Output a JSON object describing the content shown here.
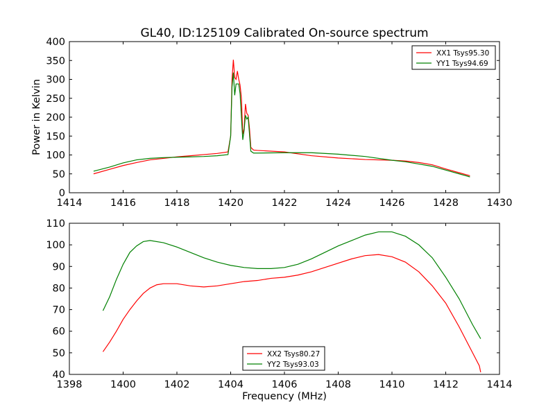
{
  "figure": {
    "title": "GL40, ID:125109 Calibrated On-source spectrum"
  },
  "chart_data": [
    {
      "type": "line",
      "title": "GL40, ID:125109 Calibrated On-source spectrum",
      "xlabel": "",
      "ylabel": "Power in Kelvin",
      "xlim": [
        1414,
        1430
      ],
      "ylim": [
        0,
        400
      ],
      "xticks": [
        1414,
        1416,
        1418,
        1420,
        1422,
        1424,
        1426,
        1428,
        1430
      ],
      "yticks": [
        0,
        50,
        100,
        150,
        200,
        250,
        300,
        350,
        400
      ],
      "grid": false,
      "legend_position": "top-right",
      "series": [
        {
          "name": "XX1 Tsys95.30",
          "color": "#ff0000",
          "points": [
            [
              1414.9,
              50
            ],
            [
              1415.5,
              62
            ],
            [
              1416,
              72
            ],
            [
              1416.5,
              80
            ],
            [
              1417,
              87
            ],
            [
              1417.5,
              91
            ],
            [
              1418,
              95
            ],
            [
              1418.5,
              98
            ],
            [
              1419,
              101
            ],
            [
              1419.5,
              104
            ],
            [
              1419.9,
              108
            ],
            [
              1420.0,
              150
            ],
            [
              1420.05,
              300
            ],
            [
              1420.1,
              352
            ],
            [
              1420.15,
              305
            ],
            [
              1420.2,
              300
            ],
            [
              1420.25,
              322
            ],
            [
              1420.3,
              300
            ],
            [
              1420.35,
              285
            ],
            [
              1420.4,
              250
            ],
            [
              1420.45,
              155
            ],
            [
              1420.5,
              170
            ],
            [
              1420.55,
              235
            ],
            [
              1420.6,
              210
            ],
            [
              1420.65,
              205
            ],
            [
              1420.7,
              170
            ],
            [
              1420.75,
              120
            ],
            [
              1420.85,
              113
            ],
            [
              1421,
              112
            ],
            [
              1422,
              108
            ],
            [
              1423,
              98
            ],
            [
              1424,
              92
            ],
            [
              1425,
              88
            ],
            [
              1426,
              86
            ],
            [
              1426.5,
              84
            ],
            [
              1427,
              80
            ],
            [
              1427.5,
              74
            ],
            [
              1428,
              63
            ],
            [
              1428.5,
              53
            ],
            [
              1428.9,
              45
            ]
          ]
        },
        {
          "name": "YY1 Tsys94.69",
          "color": "#008000",
          "points": [
            [
              1414.9,
              57
            ],
            [
              1415.5,
              68
            ],
            [
              1416,
              79
            ],
            [
              1416.5,
              87
            ],
            [
              1417,
              91
            ],
            [
              1417.5,
              93
            ],
            [
              1418,
              94
            ],
            [
              1418.5,
              95
            ],
            [
              1419,
              96
            ],
            [
              1419.5,
              98
            ],
            [
              1419.9,
              101
            ],
            [
              1420.0,
              150
            ],
            [
              1420.05,
              280
            ],
            [
              1420.1,
              318
            ],
            [
              1420.15,
              258
            ],
            [
              1420.2,
              288
            ],
            [
              1420.3,
              288
            ],
            [
              1420.35,
              262
            ],
            [
              1420.4,
              200
            ],
            [
              1420.45,
              140
            ],
            [
              1420.5,
              165
            ],
            [
              1420.55,
              205
            ],
            [
              1420.6,
              195
            ],
            [
              1420.65,
              200
            ],
            [
              1420.7,
              155
            ],
            [
              1420.75,
              110
            ],
            [
              1420.85,
              105
            ],
            [
              1421,
              105
            ],
            [
              1422,
              106
            ],
            [
              1423,
              106
            ],
            [
              1424,
              102
            ],
            [
              1425,
              96
            ],
            [
              1426,
              86
            ],
            [
              1426.5,
              82
            ],
            [
              1427,
              76
            ],
            [
              1427.5,
              70
            ],
            [
              1428,
              60
            ],
            [
              1428.5,
              50
            ],
            [
              1428.9,
              42
            ]
          ]
        }
      ]
    },
    {
      "type": "line",
      "title": "",
      "xlabel": "Frequency (MHz)",
      "ylabel": "",
      "xlim": [
        1398,
        1414
      ],
      "ylim": [
        40,
        110
      ],
      "xticks": [
        1398,
        1400,
        1402,
        1404,
        1406,
        1408,
        1410,
        1412,
        1414
      ],
      "yticks": [
        40,
        50,
        60,
        70,
        80,
        90,
        100,
        110
      ],
      "grid": false,
      "legend_position": "bottom-center",
      "series": [
        {
          "name": "XX2 Tsys80.27",
          "color": "#ff0000",
          "points": [
            [
              1399.25,
              50.5
            ],
            [
              1399.5,
              55
            ],
            [
              1399.75,
              60
            ],
            [
              1400,
              65.5
            ],
            [
              1400.25,
              70
            ],
            [
              1400.5,
              74
            ],
            [
              1400.75,
              77.5
            ],
            [
              1401,
              80
            ],
            [
              1401.25,
              81.5
            ],
            [
              1401.5,
              82
            ],
            [
              1402,
              82
            ],
            [
              1402.5,
              81
            ],
            [
              1403,
              80.5
            ],
            [
              1403.5,
              81
            ],
            [
              1404,
              82
            ],
            [
              1404.5,
              83
            ],
            [
              1405,
              83.5
            ],
            [
              1405.5,
              84.5
            ],
            [
              1406,
              85
            ],
            [
              1406.5,
              86
            ],
            [
              1407,
              87.5
            ],
            [
              1407.5,
              89.5
            ],
            [
              1408,
              91.5
            ],
            [
              1408.5,
              93.5
            ],
            [
              1409,
              95
            ],
            [
              1409.5,
              95.5
            ],
            [
              1410,
              94.5
            ],
            [
              1410.5,
              92
            ],
            [
              1411,
              87.5
            ],
            [
              1411.5,
              81
            ],
            [
              1412,
              73
            ],
            [
              1412.5,
              62
            ],
            [
              1413,
              50
            ],
            [
              1413.25,
              44
            ],
            [
              1413.3,
              41
            ]
          ]
        },
        {
          "name": "YY2 Tsys93.03",
          "color": "#008000",
          "points": [
            [
              1399.25,
              69.5
            ],
            [
              1399.5,
              76
            ],
            [
              1399.75,
              84
            ],
            [
              1400,
              91
            ],
            [
              1400.25,
              96.5
            ],
            [
              1400.5,
              99.5
            ],
            [
              1400.75,
              101.5
            ],
            [
              1401,
              102
            ],
            [
              1401.5,
              101
            ],
            [
              1402,
              99
            ],
            [
              1402.5,
              96.5
            ],
            [
              1403,
              94
            ],
            [
              1403.5,
              92
            ],
            [
              1404,
              90.5
            ],
            [
              1404.5,
              89.5
            ],
            [
              1405,
              89
            ],
            [
              1405.5,
              89
            ],
            [
              1406,
              89.5
            ],
            [
              1406.5,
              91
            ],
            [
              1407,
              93.5
            ],
            [
              1407.5,
              96.5
            ],
            [
              1408,
              99.5
            ],
            [
              1408.5,
              102
            ],
            [
              1409,
              104.5
            ],
            [
              1409.5,
              106
            ],
            [
              1410,
              106
            ],
            [
              1410.5,
              104
            ],
            [
              1411,
              100
            ],
            [
              1411.5,
              94
            ],
            [
              1412,
              85
            ],
            [
              1412.5,
              75
            ],
            [
              1413,
              63
            ],
            [
              1413.3,
              56.5
            ]
          ]
        }
      ]
    }
  ]
}
